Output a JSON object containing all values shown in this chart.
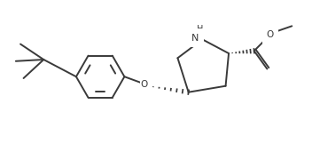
{
  "background_color": "#ffffff",
  "line_color": "#3a3a3a",
  "line_width": 1.4,
  "fig_width": 3.52,
  "fig_height": 1.62,
  "dpi": 100,
  "xlim": [
    0,
    10
  ],
  "ylim": [
    0,
    4.6
  ]
}
